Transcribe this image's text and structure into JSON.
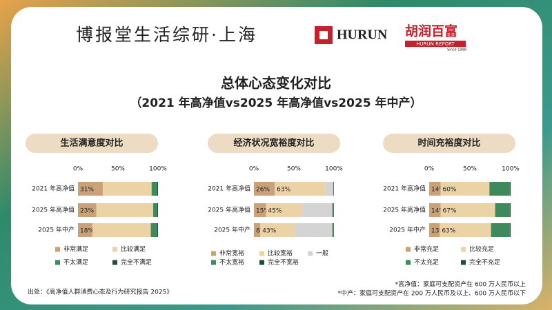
{
  "header": {
    "brand": "博报堂生活综研·上海",
    "logo_text": "HURUN",
    "logo_cn": "胡润百富",
    "logo_sub": "HURUN REPORT",
    "logo_since": "Since 1999"
  },
  "title": "总体心态变化对比",
  "subtitle": "（2021 年高净值vs2025 年高净值vs2025 年中产）",
  "source": "出处：《高净值人群消费心态及行为研究报告 2025》",
  "notes": [
    "*高净值：家庭可支配资产在 600 万人民币以上",
    "*中产：家庭可支配资产在 200 万人民币及以上、600 万人民币以下"
  ],
  "chart_data": [
    {
      "type": "bar",
      "orientation": "horizontal",
      "stacked": true,
      "title": "生活满意度对比",
      "categories": [
        "2021 年高净值",
        "2025 年高净值",
        "2025 年中产"
      ],
      "xlim": [
        0,
        100
      ],
      "xticks": [
        {
          "value": 0,
          "label": "0%"
        },
        {
          "value": 50,
          "label": "50%"
        },
        {
          "value": 100,
          "label": "100%"
        }
      ],
      "series": [
        {
          "name": "非常满足",
          "color": "#c9a27a",
          "values": [
            31,
            23,
            18
          ],
          "value_labels": [
            "31%",
            "23%",
            "18%"
          ]
        },
        {
          "name": "比较满足",
          "color": "#ecd3a6",
          "values": [
            61,
            71,
            73
          ]
        },
        {
          "name": "不太满足",
          "color": "#3f8a5c",
          "values": [
            7,
            5,
            8
          ]
        },
        {
          "name": "完全不满足",
          "color": "#1f4e37",
          "values": [
            1,
            1,
            1
          ]
        }
      ]
    },
    {
      "type": "bar",
      "orientation": "horizontal",
      "stacked": true,
      "title": "经济状况宽裕度对比",
      "categories": [
        "2021 年高净值",
        "2025 年高净值",
        "2025 年中产"
      ],
      "xlim": [
        0,
        100
      ],
      "xticks": [
        {
          "value": 0,
          "label": "0%"
        },
        {
          "value": 50,
          "label": "50%"
        },
        {
          "value": 100,
          "label": "100%"
        }
      ],
      "series": [
        {
          "name": "非常宽裕",
          "color": "#c9a27a",
          "values": [
            26,
            15,
            8
          ],
          "value_labels": [
            "26%",
            "15%",
            "8%"
          ]
        },
        {
          "name": "比较宽裕",
          "color": "#ecd3a6",
          "values": [
            63,
            45,
            43
          ],
          "value_labels": [
            "63%",
            "45%",
            "43%"
          ]
        },
        {
          "name": "一般",
          "color": "#d4d4d4",
          "values": [
            10,
            38,
            47
          ]
        },
        {
          "name": "不太宽裕",
          "color": "#3f8a5c",
          "values": [
            1,
            2,
            2
          ]
        },
        {
          "name": "完全不宽裕",
          "color": "#1f4e37",
          "values": [
            0,
            0,
            0
          ]
        }
      ]
    },
    {
      "type": "bar",
      "orientation": "horizontal",
      "stacked": true,
      "title": "时间充裕度对比",
      "categories": [
        "2021 年高净值",
        "2025 年高净值",
        "2025 年中产"
      ],
      "xlim": [
        0,
        100
      ],
      "xticks": [
        {
          "value": 0,
          "label": "0%"
        },
        {
          "value": 50,
          "label": "50%"
        },
        {
          "value": 100,
          "label": "100%"
        }
      ],
      "series": [
        {
          "name": "非常充足",
          "color": "#c9a27a",
          "values": [
            14,
            14,
            13
          ],
          "value_labels": [
            "14%",
            "14%",
            "13%"
          ]
        },
        {
          "name": "比较充足",
          "color": "#ecd3a6",
          "values": [
            60,
            67,
            63
          ],
          "value_labels": [
            "60%",
            "67%",
            "63%"
          ]
        },
        {
          "name": "不太充足",
          "color": "#3f8a5c",
          "values": [
            25,
            18,
            23
          ]
        },
        {
          "name": "完全不充足",
          "color": "#1f4e37",
          "values": [
            1,
            1,
            1
          ]
        }
      ]
    }
  ]
}
